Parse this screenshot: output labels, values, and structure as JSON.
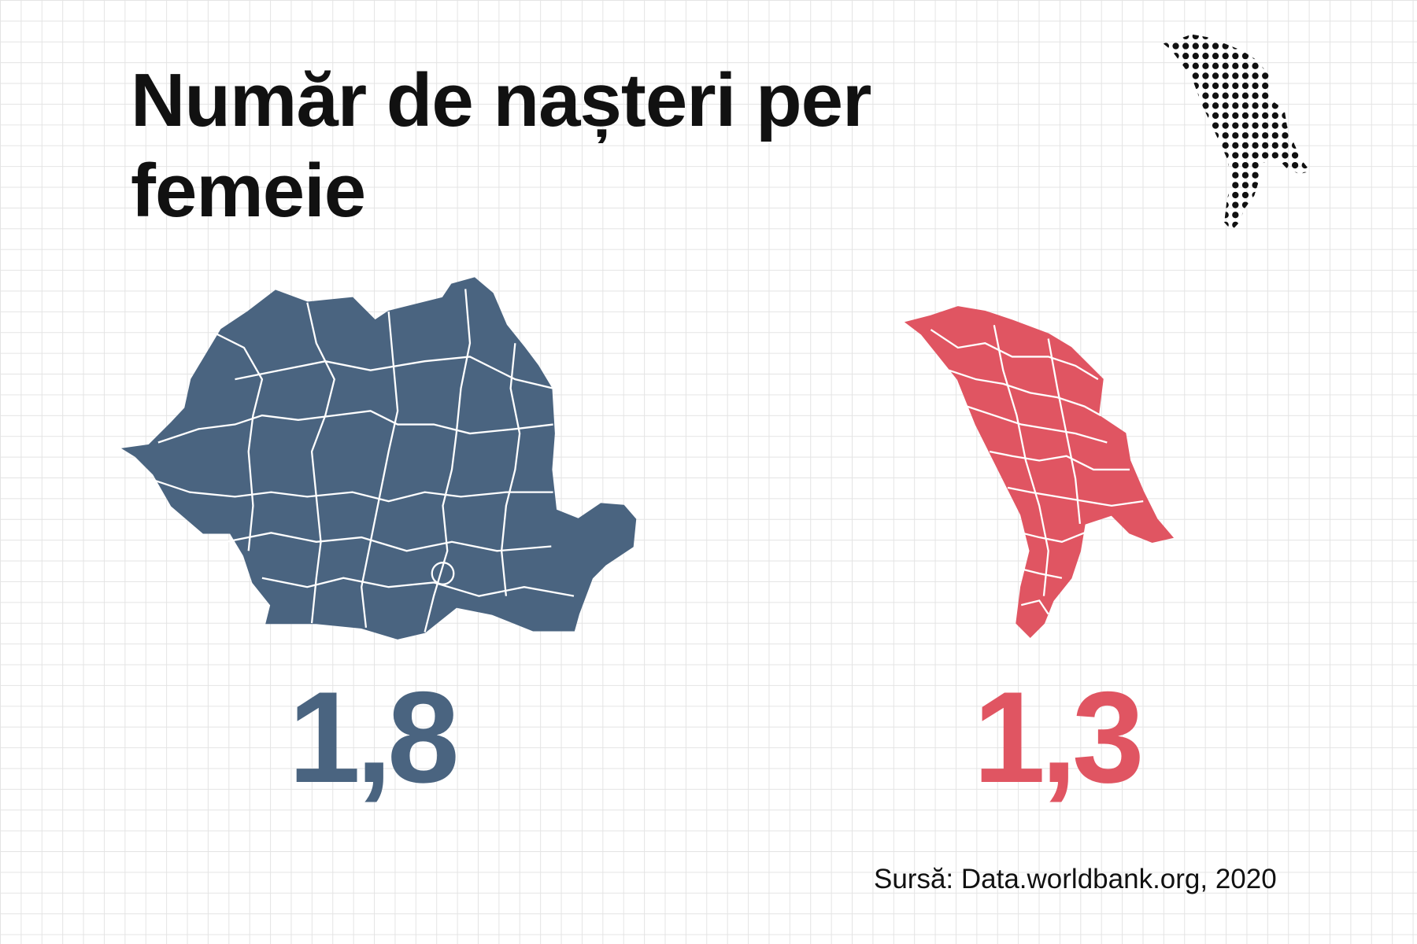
{
  "title": "Număr de nașteri per femeie",
  "items": [
    {
      "value": "1,8",
      "color": "#4a6480"
    },
    {
      "value": "1,3",
      "color": "#e05562"
    }
  ],
  "source": "Sursă: Data.worldbank.org, 2020"
}
